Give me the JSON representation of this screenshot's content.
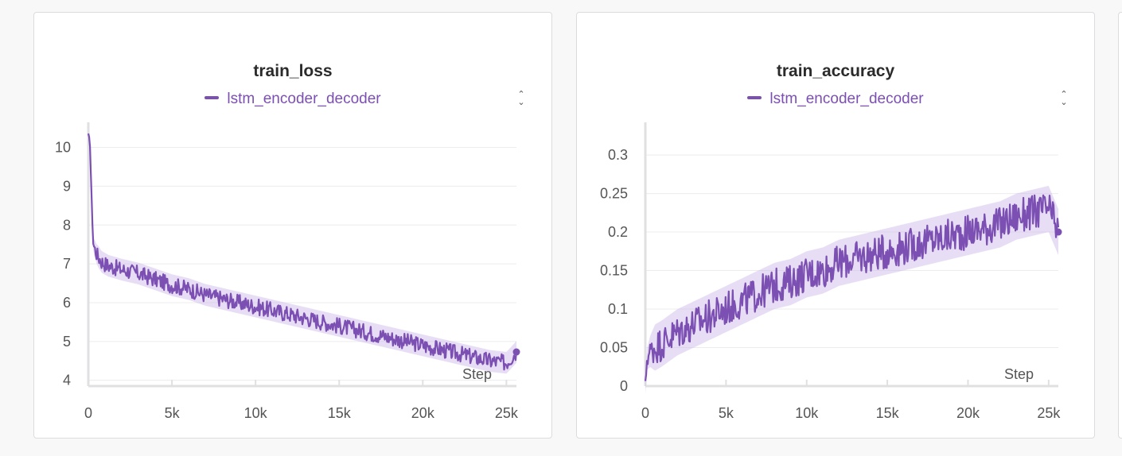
{
  "colors": {
    "series": "#7c4fb3",
    "band": "#c9b6e8",
    "grid": "#ececef",
    "axis": "#e0e0e3"
  },
  "chart_data": [
    {
      "type": "line",
      "title": "train_loss",
      "xlabel": "Step",
      "ylabel": "",
      "legend": "top-center",
      "grid": true,
      "xlim": [
        0,
        25600
      ],
      "ylim": [
        3.85,
        10.4
      ],
      "xticks": [
        0,
        5000,
        10000,
        15000,
        20000,
        25000
      ],
      "xtick_labels": [
        "0",
        "5k",
        "10k",
        "15k",
        "20k",
        "25k"
      ],
      "yticks": [
        4,
        5,
        6,
        7,
        8,
        9,
        10
      ],
      "ytick_labels": [
        "4",
        "5",
        "6",
        "7",
        "8",
        "9",
        "10"
      ],
      "series": [
        {
          "name": "lstm_encoder_decoder",
          "x": [
            0,
            100,
            200,
            300,
            500,
            800,
            1200,
            2000,
            3000,
            4000,
            5000,
            6000,
            7000,
            8000,
            9000,
            10000,
            11000,
            12000,
            13000,
            14000,
            15000,
            16000,
            17000,
            18000,
            19000,
            20000,
            21000,
            22000,
            23000,
            24000,
            25000,
            25600
          ],
          "y": [
            10.3,
            10.1,
            8.6,
            7.5,
            7.25,
            7.05,
            6.95,
            6.85,
            6.75,
            6.6,
            6.45,
            6.35,
            6.2,
            6.1,
            6.0,
            5.9,
            5.8,
            5.7,
            5.6,
            5.5,
            5.4,
            5.3,
            5.2,
            5.1,
            5.0,
            4.9,
            4.8,
            4.7,
            4.6,
            4.5,
            4.45,
            4.73
          ],
          "noise": 0.28,
          "last_value": 4.73
        }
      ]
    },
    {
      "type": "line",
      "title": "train_accuracy",
      "xlabel": "Step",
      "ylabel": "",
      "legend": "top-center",
      "grid": true,
      "xlim": [
        0,
        25600
      ],
      "ylim": [
        0,
        0.33
      ],
      "xticks": [
        0,
        5000,
        10000,
        15000,
        20000,
        25000
      ],
      "xtick_labels": [
        "0",
        "5k",
        "10k",
        "15k",
        "20k",
        "25k"
      ],
      "yticks": [
        0,
        0.05,
        0.1,
        0.15,
        0.2,
        0.25,
        0.3
      ],
      "ytick_labels": [
        "0",
        "0.05",
        "0.1",
        "0.15",
        "0.2",
        "0.25",
        "0.3"
      ],
      "series": [
        {
          "name": "lstm_encoder_decoder",
          "x": [
            0,
            100,
            300,
            600,
            1000,
            2000,
            3000,
            4000,
            5000,
            6000,
            7000,
            8000,
            9000,
            10000,
            11000,
            12000,
            13000,
            14000,
            15000,
            16000,
            17000,
            18000,
            19000,
            20000,
            21000,
            22000,
            23000,
            24000,
            25000,
            25600
          ],
          "y": [
            0.0,
            0.035,
            0.045,
            0.05,
            0.055,
            0.07,
            0.08,
            0.09,
            0.1,
            0.11,
            0.12,
            0.13,
            0.135,
            0.145,
            0.15,
            0.16,
            0.165,
            0.17,
            0.175,
            0.18,
            0.185,
            0.19,
            0.195,
            0.2,
            0.205,
            0.21,
            0.22,
            0.225,
            0.23,
            0.2
          ],
          "noise": 0.03,
          "last_value": 0.2
        }
      ]
    }
  ]
}
